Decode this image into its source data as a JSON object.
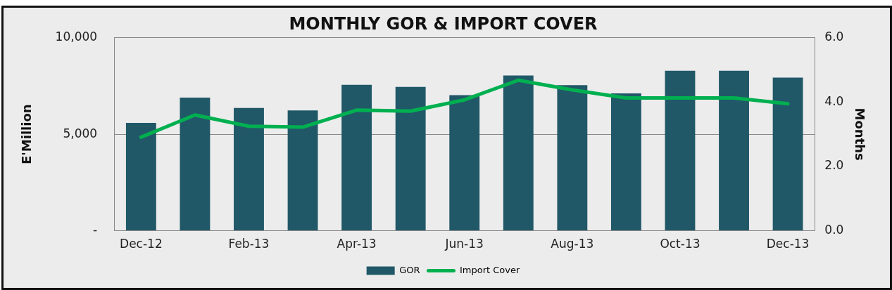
{
  "chart_data": {
    "type": "bar",
    "title": "MONTHLY GOR & IMPORT COVER",
    "ylabel": "E'Million",
    "y2label": "Months",
    "categories": [
      "Dec-12",
      null,
      "Feb-13",
      null,
      "Apr-13",
      null,
      "Jun-13",
      null,
      "Aug-13",
      null,
      "Oct-13",
      null,
      "Dec-13"
    ],
    "series": [
      {
        "name": "GOR",
        "color": "#215868",
        "values": [
          5590,
          6900,
          6360,
          6240,
          7560,
          7450,
          7030,
          8050,
          7550,
          7120,
          8290,
          8290,
          7940
        ]
      },
      {
        "name": "Import Cover",
        "type": "line",
        "axis": "y2",
        "color": "#00b050",
        "values": [
          2.91,
          3.6,
          3.25,
          3.22,
          3.75,
          3.72,
          4.07,
          4.68,
          4.38,
          4.13,
          4.13,
          4.13,
          3.95
        ]
      }
    ],
    "ylim": [
      0,
      10000
    ],
    "yticks": [
      {
        "value": 0,
        "label": "-"
      },
      {
        "value": 5000,
        "label": "5,000"
      },
      {
        "value": 10000,
        "label": "10,000"
      }
    ],
    "y2lim": [
      0,
      6
    ],
    "y2ticks": [
      {
        "value": 0,
        "label": "0.0"
      },
      {
        "value": 2,
        "label": "2.0"
      },
      {
        "value": 4,
        "label": "4.0"
      },
      {
        "value": 6,
        "label": "6.0"
      }
    ],
    "grid": "y",
    "legend": "bottom",
    "marker": "none"
  }
}
